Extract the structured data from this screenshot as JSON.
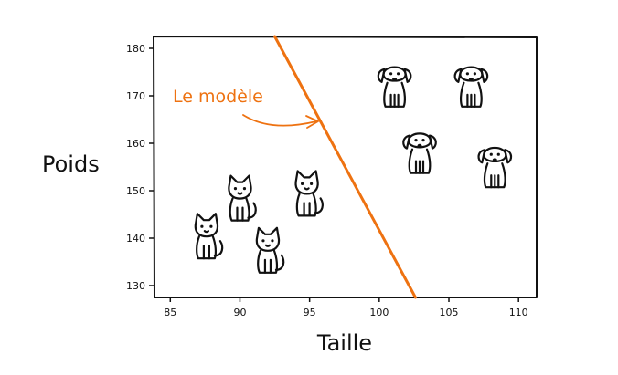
{
  "chart_data": {
    "type": "scatter",
    "title": "",
    "xlabel": "Taille",
    "ylabel": "Poids",
    "xlim": [
      83.8,
      111.3
    ],
    "ylim": [
      127.5,
      182.5
    ],
    "xticks": [
      85,
      90,
      95,
      100,
      105,
      110
    ],
    "yticks": [
      130,
      140,
      150,
      160,
      170,
      180
    ],
    "grid": false,
    "series": [
      {
        "icon": "cat-icon",
        "points": [
          {
            "x": 90.0,
            "y": 147
          },
          {
            "x": 94.8,
            "y": 148
          },
          {
            "x": 87.6,
            "y": 139
          },
          {
            "x": 92.0,
            "y": 136
          }
        ]
      },
      {
        "icon": "dog-icon",
        "points": [
          {
            "x": 101.1,
            "y": 171
          },
          {
            "x": 106.6,
            "y": 171
          },
          {
            "x": 102.9,
            "y": 157
          },
          {
            "x": 108.3,
            "y": 154
          }
        ]
      }
    ],
    "model_line": {
      "label": "Le modèle",
      "color": "#ee7211",
      "points": [
        [
          92.5,
          182.5
        ],
        [
          102.6,
          127.5
        ]
      ]
    }
  }
}
